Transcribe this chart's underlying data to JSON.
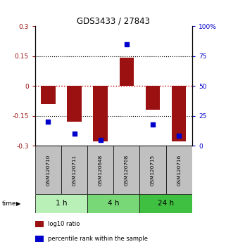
{
  "title": "GDS3433 / 27843",
  "samples": [
    "GSM120710",
    "GSM120711",
    "GSM120648",
    "GSM120708",
    "GSM120715",
    "GSM120716"
  ],
  "log10_ratio": [
    -0.09,
    -0.18,
    -0.28,
    0.14,
    -0.12,
    -0.28
  ],
  "percentile_rank": [
    20,
    10,
    5,
    85,
    18,
    8
  ],
  "groups": [
    {
      "label": "1 h",
      "indices": [
        0,
        1
      ],
      "color": "#b8f0b8"
    },
    {
      "label": "4 h",
      "indices": [
        2,
        3
      ],
      "color": "#78d878"
    },
    {
      "label": "24 h",
      "indices": [
        4,
        5
      ],
      "color": "#40c040"
    }
  ],
  "bar_color": "#9b1010",
  "dot_color": "#0000cc",
  "bar_width": 0.55,
  "ylim_left": [
    -0.3,
    0.3
  ],
  "ylim_right": [
    0,
    100
  ],
  "yticks_left": [
    -0.3,
    -0.15,
    0,
    0.15,
    0.3
  ],
  "yticks_right": [
    0,
    25,
    50,
    75,
    100
  ],
  "hlines_dotted": [
    -0.15,
    0.15
  ],
  "hline_zero_color": "#cc0000",
  "hline_other_color": "#000000",
  "xlabel_area_color": "#c0c0c0",
  "legend_items": [
    {
      "label": "log10 ratio",
      "color": "#9b1010"
    },
    {
      "label": "percentile rank within the sample",
      "color": "#0000cc"
    }
  ]
}
